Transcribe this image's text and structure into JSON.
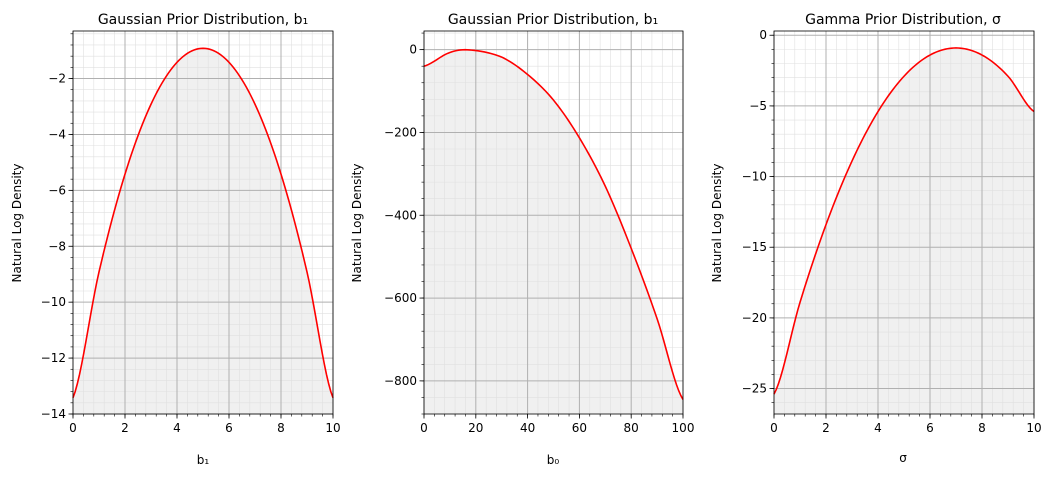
{
  "figure": {
    "background": "#ffffff"
  },
  "colors": {
    "line": "#ff0000",
    "fill": "#f0f0f0",
    "major_grid": "#b0b0b0",
    "minor_grid": "#e0e0e0",
    "axes": "#000000"
  },
  "chart_data": [
    {
      "type": "line",
      "title": "Gaussian Prior Distribution, b₁",
      "xlabel": "b₁",
      "ylabel": "Natural Log Density",
      "xlim": [
        0,
        10
      ],
      "ylim": [
        -14.0,
        -0.3
      ],
      "xticks": [
        0,
        2,
        4,
        6,
        8,
        10
      ],
      "xtick_labels": [
        "0",
        "2",
        "4",
        "6",
        "8",
        "10"
      ],
      "yticks": [
        -14,
        -12,
        -10,
        -8,
        -6,
        -4,
        -2
      ],
      "ytick_labels": [
        "−14",
        "−12",
        "−10",
        "−8",
        "−6",
        "−4",
        "−2"
      ],
      "x_minor_step": 0.4,
      "y_minor_step": 0.4,
      "grid": true,
      "filled_under_curve": true,
      "x": [
        0,
        1,
        2,
        3,
        4,
        5,
        6,
        7,
        8,
        9,
        10
      ],
      "y": [
        -13.42,
        -8.92,
        -5.42,
        -2.92,
        -1.42,
        -0.92,
        -1.42,
        -2.92,
        -5.42,
        -8.92,
        -13.42
      ]
    },
    {
      "type": "line",
      "title": "Gaussian Prior Distribution, b₁",
      "xlabel": "b₀",
      "ylabel": "Natural Log Density",
      "xlim": [
        0,
        100
      ],
      "ylim": [
        -880,
        45
      ],
      "xticks": [
        0,
        20,
        40,
        60,
        80,
        100
      ],
      "xtick_labels": [
        "0",
        "20",
        "40",
        "60",
        "80",
        "100"
      ],
      "yticks": [
        -800,
        -600,
        -400,
        -200,
        0
      ],
      "ytick_labels": [
        "−800",
        "−600",
        "−400",
        "−200",
        "0"
      ],
      "x_minor_step": 4,
      "y_minor_step": 40,
      "grid": true,
      "filled_under_curve": true,
      "x": [
        0,
        10,
        18,
        30,
        40,
        50,
        60,
        70,
        80,
        90,
        100
      ],
      "y": [
        -40,
        -7,
        -1,
        -18,
        -60,
        -122,
        -213,
        -330,
        -480,
        -650,
        -845
      ]
    },
    {
      "type": "line",
      "title": "Gamma Prior Distribution, σ",
      "xlabel": "σ",
      "ylabel": "Natural Log Density",
      "xlim": [
        0,
        10
      ],
      "ylim": [
        -26.8,
        0.3
      ],
      "xticks": [
        0,
        2,
        4,
        6,
        8,
        10
      ],
      "xtick_labels": [
        "0",
        "2",
        "4",
        "6",
        "8",
        "10"
      ],
      "yticks": [
        -25,
        -20,
        -15,
        -10,
        -5,
        0
      ],
      "ytick_labels": [
        "−25",
        "−20",
        "−15",
        "−10",
        "−5",
        "0"
      ],
      "x_minor_step": 0.4,
      "y_minor_step": 1,
      "grid": true,
      "filled_under_curve": true,
      "x": [
        0,
        1,
        2,
        3,
        4,
        5,
        6,
        7,
        8,
        9,
        10
      ],
      "y": [
        -25.4,
        -18.9,
        -13.4,
        -8.9,
        -5.4,
        -2.9,
        -1.4,
        -0.9,
        -1.4,
        -2.9,
        -5.4
      ]
    }
  ]
}
